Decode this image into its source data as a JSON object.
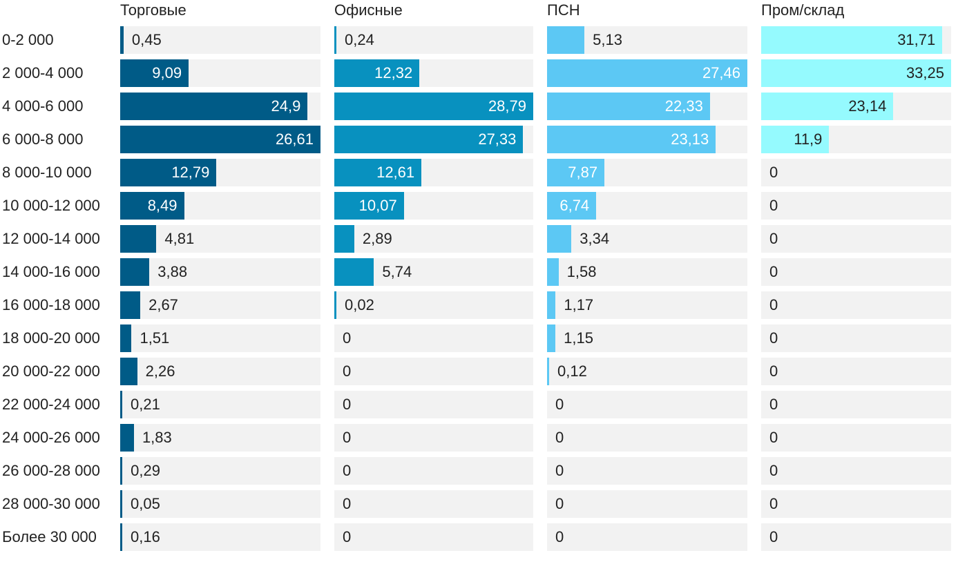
{
  "chart_data": {
    "type": "bar",
    "orientation": "horizontal",
    "layout": "small-multiples",
    "categories": [
      "0-2 000",
      "2 000-4 000",
      "4 000-6 000",
      "6 000-8 000",
      "8 000-10 000",
      "10 000-12 000",
      "12 000-14 000",
      "14 000-16 000",
      "16 000-18 000",
      "18 000-20 000",
      "20 000-22 000",
      "22 000-24 000",
      "24 000-26 000",
      "26 000-28 000",
      "28 000-30 000",
      "Более 30 000"
    ],
    "series": [
      {
        "name": "Торговые",
        "color": "#005b87",
        "values": [
          0.45,
          9.09,
          24.9,
          26.61,
          12.79,
          8.49,
          4.81,
          3.88,
          2.67,
          1.51,
          2.26,
          0.21,
          1.83,
          0.29,
          0.05,
          0.16
        ],
        "labels": [
          "0,45",
          "9,09",
          "24,9",
          "26,61",
          "12,79",
          "8,49",
          "4,81",
          "3,88",
          "2,67",
          "1,51",
          "2,26",
          "0,21",
          "1,83",
          "0,29",
          "0,05",
          "0,16"
        ]
      },
      {
        "name": "Офисные",
        "color": "#0891bf",
        "values": [
          0.24,
          12.32,
          28.79,
          27.33,
          12.61,
          10.07,
          2.89,
          5.74,
          0.02,
          0,
          0,
          0,
          0,
          0,
          0,
          0
        ],
        "labels": [
          "0,24",
          "12,32",
          "28,79",
          "27,33",
          "12,61",
          "10,07",
          "2,89",
          "5,74",
          "0,02",
          "0",
          "0",
          "0",
          "0",
          "0",
          "0",
          "0"
        ]
      },
      {
        "name": "ПСН",
        "color": "#5cc8f4",
        "values": [
          5.13,
          27.46,
          22.33,
          23.13,
          7.87,
          6.74,
          3.34,
          1.58,
          1.17,
          1.15,
          0.12,
          0,
          0,
          0,
          0,
          0
        ],
        "labels": [
          "5,13",
          "27,46",
          "22,33",
          "23,13",
          "7,87",
          "6,74",
          "3,34",
          "1,58",
          "1,17",
          "1,15",
          "0,12",
          "0",
          "0",
          "0",
          "0",
          "0"
        ]
      },
      {
        "name": "Пром/склад",
        "color": "#95fafe",
        "values": [
          31.71,
          33.25,
          23.14,
          11.9,
          0,
          0,
          0,
          0,
          0,
          0,
          0,
          0,
          0,
          0,
          0,
          0
        ],
        "labels": [
          "31,71",
          "33,25",
          "23,14",
          "11,9",
          "0",
          "0",
          "0",
          "0",
          "0",
          "0",
          "0",
          "0",
          "0",
          "0",
          "0",
          "0"
        ]
      }
    ],
    "value_label_colors": {
      "inside": "#ffffff",
      "inside_light": "#222222",
      "outside": "#222222"
    },
    "track_color": "#f2f2f2",
    "grid": false,
    "legend": "none"
  }
}
